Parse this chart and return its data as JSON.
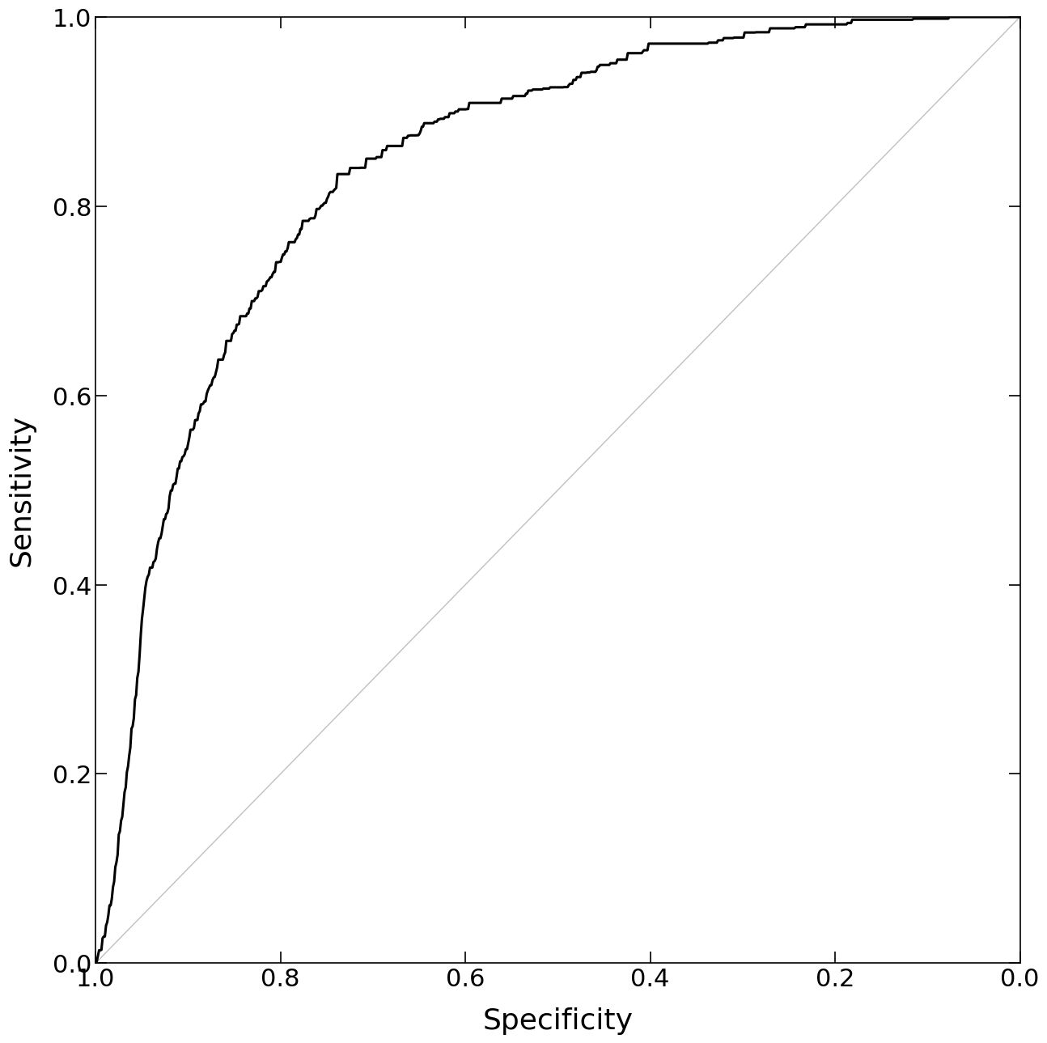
{
  "xlabel": "Specificity",
  "ylabel": "Sensitivity",
  "xlim": [
    1.0,
    0.0
  ],
  "ylim": [
    0.0,
    1.0
  ],
  "xticks": [
    1.0,
    0.8,
    0.6,
    0.4,
    0.2,
    0.0
  ],
  "yticks": [
    0.0,
    0.2,
    0.4,
    0.6,
    0.8,
    1.0
  ],
  "roc_color": "#000000",
  "diag_color": "#c0c0c0",
  "roc_linewidth": 2.2,
  "diag_linewidth": 1.0,
  "background_color": "#ffffff",
  "tick_label_fontsize": 22,
  "axis_label_fontsize": 26,
  "roc_points": [
    [
      1.0,
      0.0
    ],
    [
      0.995,
      0.01
    ],
    [
      0.99,
      0.03
    ],
    [
      0.985,
      0.06
    ],
    [
      0.98,
      0.09
    ],
    [
      0.975,
      0.13
    ],
    [
      0.97,
      0.17
    ],
    [
      0.965,
      0.21
    ],
    [
      0.96,
      0.25
    ],
    [
      0.955,
      0.3
    ],
    [
      0.95,
      0.36
    ],
    [
      0.945,
      0.41
    ],
    [
      0.94,
      0.415
    ],
    [
      0.935,
      0.43
    ],
    [
      0.93,
      0.45
    ],
    [
      0.925,
      0.47
    ],
    [
      0.92,
      0.49
    ],
    [
      0.915,
      0.505
    ],
    [
      0.91,
      0.52
    ],
    [
      0.905,
      0.535
    ],
    [
      0.9,
      0.55
    ],
    [
      0.895,
      0.565
    ],
    [
      0.89,
      0.575
    ],
    [
      0.885,
      0.59
    ],
    [
      0.88,
      0.6
    ],
    [
      0.875,
      0.615
    ],
    [
      0.87,
      0.625
    ],
    [
      0.865,
      0.635
    ],
    [
      0.86,
      0.645
    ],
    [
      0.855,
      0.655
    ],
    [
      0.85,
      0.665
    ],
    [
      0.845,
      0.673
    ],
    [
      0.84,
      0.68
    ],
    [
      0.835,
      0.688
    ],
    [
      0.83,
      0.695
    ],
    [
      0.825,
      0.703
    ],
    [
      0.82,
      0.71
    ],
    [
      0.815,
      0.718
    ],
    [
      0.81,
      0.725
    ],
    [
      0.805,
      0.733
    ],
    [
      0.8,
      0.74
    ],
    [
      0.795,
      0.748
    ],
    [
      0.79,
      0.756
    ],
    [
      0.785,
      0.762
    ],
    [
      0.78,
      0.768
    ],
    [
      0.775,
      0.775
    ],
    [
      0.77,
      0.782
    ],
    [
      0.765,
      0.788
    ],
    [
      0.76,
      0.795
    ],
    [
      0.755,
      0.8
    ],
    [
      0.75,
      0.806
    ],
    [
      0.745,
      0.812
    ],
    [
      0.74,
      0.817
    ],
    [
      0.735,
      0.822
    ],
    [
      0.73,
      0.828
    ],
    [
      0.72,
      0.834
    ],
    [
      0.71,
      0.84
    ],
    [
      0.7,
      0.846
    ],
    [
      0.69,
      0.852
    ],
    [
      0.68,
      0.858
    ],
    [
      0.67,
      0.864
    ],
    [
      0.66,
      0.87
    ],
    [
      0.65,
      0.876
    ],
    [
      0.64,
      0.882
    ],
    [
      0.63,
      0.888
    ],
    [
      0.62,
      0.892
    ],
    [
      0.61,
      0.896
    ],
    [
      0.6,
      0.9
    ],
    [
      0.58,
      0.904
    ],
    [
      0.56,
      0.908
    ],
    [
      0.54,
      0.912
    ],
    [
      0.52,
      0.916
    ],
    [
      0.5,
      0.92
    ],
    [
      0.48,
      0.93
    ],
    [
      0.46,
      0.94
    ],
    [
      0.44,
      0.95
    ],
    [
      0.42,
      0.955
    ],
    [
      0.4,
      0.96
    ],
    [
      0.38,
      0.963
    ],
    [
      0.36,
      0.966
    ],
    [
      0.34,
      0.97
    ],
    [
      0.32,
      0.972
    ],
    [
      0.3,
      0.975
    ],
    [
      0.28,
      0.978
    ],
    [
      0.26,
      0.98
    ],
    [
      0.24,
      0.982
    ],
    [
      0.22,
      0.983
    ],
    [
      0.2,
      0.985
    ],
    [
      0.18,
      0.987
    ],
    [
      0.16,
      0.988
    ],
    [
      0.14,
      0.99
    ],
    [
      0.12,
      0.991
    ],
    [
      0.1,
      0.992
    ],
    [
      0.08,
      0.994
    ],
    [
      0.06,
      0.995
    ],
    [
      0.04,
      0.996
    ],
    [
      0.02,
      0.998
    ],
    [
      0.01,
      0.999
    ],
    [
      0.0,
      1.0
    ]
  ]
}
